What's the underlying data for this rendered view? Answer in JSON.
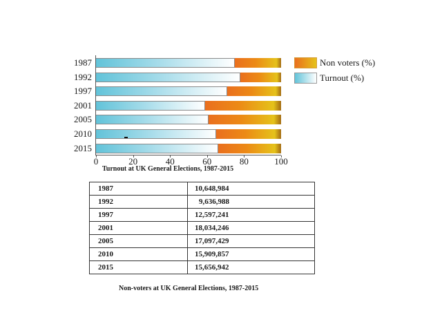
{
  "chart_data": [
    {
      "type": "bar",
      "orientation": "horizontal",
      "stacked": true,
      "title": "Turnout at UK General Elections, 1987-2015",
      "xlabel": "",
      "ylabel": "",
      "xlim": [
        0,
        100
      ],
      "xticks": [
        0,
        20,
        40,
        60,
        80,
        100
      ],
      "categories": [
        "1987",
        "1992",
        "1997",
        "2001",
        "2005",
        "2010",
        "2015"
      ],
      "series": [
        {
          "name": "Turnout (%)",
          "values": [
            75,
            78,
            71,
            59,
            61,
            65,
            66
          ],
          "color": "#62c3d9"
        },
        {
          "name": "Non voters (%)",
          "values": [
            25,
            22,
            29,
            41,
            39,
            35,
            34
          ],
          "color": "#ea6f1e"
        }
      ],
      "legend_position": "right",
      "grid": false
    },
    {
      "type": "table",
      "title": "Non-voters at UK General Elections, 1987-2015",
      "rows": [
        [
          "1987",
          "10,648,984"
        ],
        [
          "1992",
          "9,636,988"
        ],
        [
          "1997",
          "12,597,241"
        ],
        [
          "2001",
          "18,034,246"
        ],
        [
          "2005",
          "17,097,429"
        ],
        [
          "2010",
          "15,909,857"
        ],
        [
          "2015",
          "15,656,942"
        ]
      ]
    }
  ],
  "chart": {
    "title": "Turnout at UK General Elections, 1987-2015",
    "ticks": [
      "0",
      "20",
      "40",
      "60",
      "80",
      "100"
    ],
    "legend": {
      "nonvoters": "Non voters (%)",
      "turnout": "Turnout (%)"
    },
    "bars": [
      {
        "year": "1987",
        "turnout": 75
      },
      {
        "year": "1992",
        "turnout": 78
      },
      {
        "year": "1997",
        "turnout": 71
      },
      {
        "year": "2001",
        "turnout": 59
      },
      {
        "year": "2005",
        "turnout": 61
      },
      {
        "year": "2010",
        "turnout": 65
      },
      {
        "year": "2015",
        "turnout": 66
      }
    ]
  },
  "table": {
    "caption": "Non-voters at UK General Elections, 1987-2015",
    "rows": [
      {
        "year": "1987",
        "value": "10,648,984"
      },
      {
        "year": "1992",
        "value": "9,636,988"
      },
      {
        "year": "1997",
        "value": "12,597,241"
      },
      {
        "year": "2001",
        "value": "18,034,246"
      },
      {
        "year": "2005",
        "value": "17,097,429"
      },
      {
        "year": "2010",
        "value": "15,909,857"
      },
      {
        "year": "2015",
        "value": "15,656,942"
      }
    ]
  }
}
